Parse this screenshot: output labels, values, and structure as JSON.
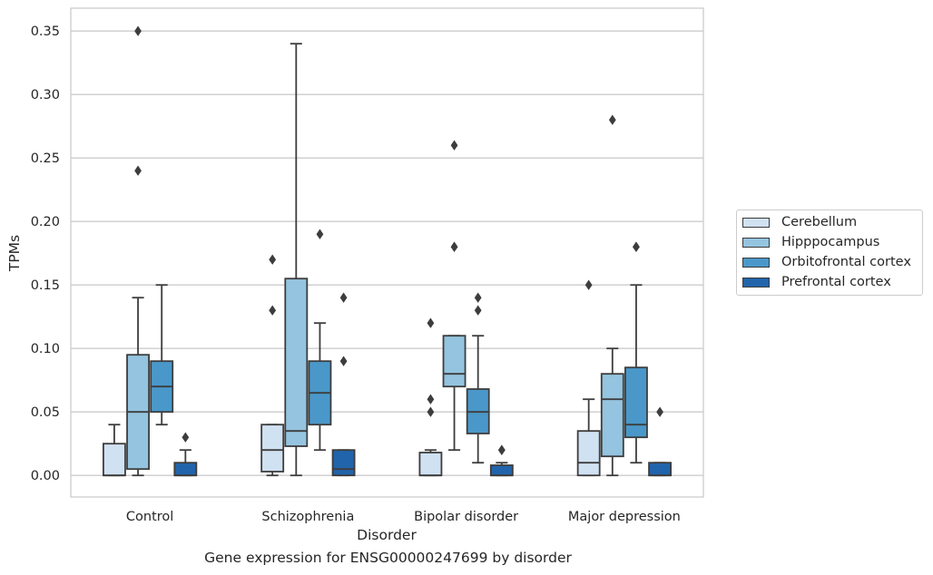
{
  "caption": "Gene expression for ENSG00000247699 by disorder",
  "chart_data": {
    "type": "box",
    "title": "",
    "xlabel": "Disorder",
    "ylabel": "TPMs",
    "ylim": [
      -0.017,
      0.368
    ],
    "yticks": [
      0.0,
      0.05,
      0.1,
      0.15,
      0.2,
      0.25,
      0.3,
      0.35
    ],
    "ytick_labels": [
      "0.00",
      "0.05",
      "0.10",
      "0.15",
      "0.20",
      "0.25",
      "0.30",
      "0.35"
    ],
    "grid": "horizontal",
    "legend_position": "right, outside plot",
    "categories": [
      "Control",
      "Schizophrenia",
      "Bipolar disorder",
      "Major depression"
    ],
    "series": [
      {
        "name": "Cerebellum",
        "color": "#d0e1f2",
        "boxes": [
          {
            "whislo": 0.0,
            "q1": 0.0,
            "med": 0.0,
            "q3": 0.025,
            "whishi": 0.04,
            "fliers": []
          },
          {
            "whislo": 0.0,
            "q1": 0.003,
            "med": 0.02,
            "q3": 0.04,
            "whishi": 0.04,
            "fliers": [
              0.13,
              0.17
            ]
          },
          {
            "whislo": 0.0,
            "q1": 0.0,
            "med": 0.0,
            "q3": 0.018,
            "whishi": 0.02,
            "fliers": [
              0.05,
              0.06,
              0.12
            ]
          },
          {
            "whislo": 0.0,
            "q1": 0.0,
            "med": 0.01,
            "q3": 0.035,
            "whishi": 0.06,
            "fliers": [
              0.15
            ]
          }
        ]
      },
      {
        "name": "Hipppocampus",
        "color": "#94c4df",
        "boxes": [
          {
            "whislo": 0.0,
            "q1": 0.005,
            "med": 0.05,
            "q3": 0.095,
            "whishi": 0.14,
            "fliers": [
              0.24,
              0.35
            ]
          },
          {
            "whislo": 0.0,
            "q1": 0.023,
            "med": 0.035,
            "q3": 0.155,
            "whishi": 0.34,
            "fliers": []
          },
          {
            "whislo": 0.02,
            "q1": 0.07,
            "med": 0.08,
            "q3": 0.11,
            "whishi": 0.11,
            "fliers": [
              0.18,
              0.18,
              0.26
            ]
          },
          {
            "whislo": 0.0,
            "q1": 0.015,
            "med": 0.06,
            "q3": 0.08,
            "whishi": 0.1,
            "fliers": [
              0.28
            ]
          }
        ]
      },
      {
        "name": "Orbitofrontal cortex",
        "color": "#4a98c9",
        "boxes": [
          {
            "whislo": 0.04,
            "q1": 0.05,
            "med": 0.07,
            "q3": 0.09,
            "whishi": 0.15,
            "fliers": []
          },
          {
            "whislo": 0.02,
            "q1": 0.04,
            "med": 0.065,
            "q3": 0.09,
            "whishi": 0.12,
            "fliers": [
              0.19
            ]
          },
          {
            "whislo": 0.01,
            "q1": 0.033,
            "med": 0.05,
            "q3": 0.068,
            "whishi": 0.11,
            "fliers": [
              0.13,
              0.14
            ]
          },
          {
            "whislo": 0.01,
            "q1": 0.03,
            "med": 0.04,
            "q3": 0.085,
            "whishi": 0.15,
            "fliers": [
              0.18,
              0.18
            ]
          }
        ]
      },
      {
        "name": "Prefrontal cortex",
        "color": "#2164ab",
        "boxes": [
          {
            "whislo": 0.0,
            "q1": 0.0,
            "med": 0.0,
            "q3": 0.01,
            "whishi": 0.02,
            "fliers": [
              0.03
            ]
          },
          {
            "whislo": 0.0,
            "q1": 0.0,
            "med": 0.005,
            "q3": 0.02,
            "whishi": 0.02,
            "fliers": [
              0.09,
              0.14
            ]
          },
          {
            "whislo": 0.0,
            "q1": 0.0,
            "med": 0.0,
            "q3": 0.008,
            "whishi": 0.01,
            "fliers": [
              0.02,
              0.02
            ]
          },
          {
            "whislo": 0.0,
            "q1": 0.0,
            "med": 0.0,
            "q3": 0.01,
            "whishi": 0.01,
            "fliers": [
              0.05
            ]
          }
        ]
      }
    ]
  }
}
